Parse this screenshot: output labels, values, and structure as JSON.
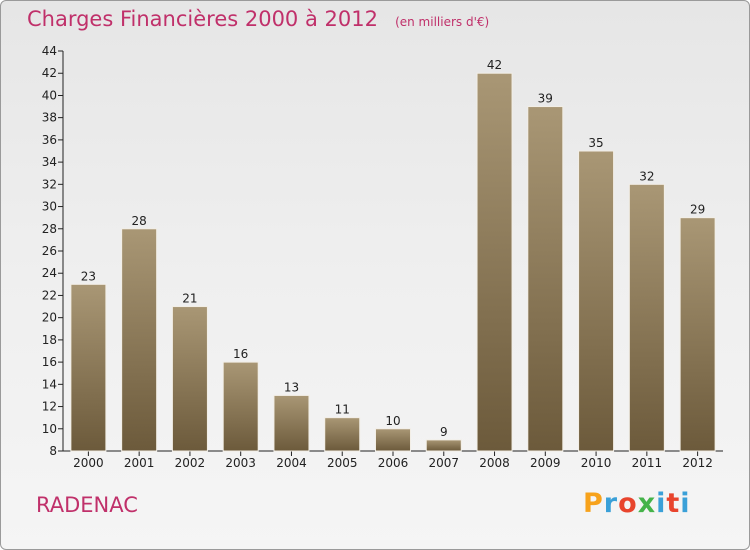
{
  "title": "Charges Financières 2000 à 2012",
  "subtitle": "(en milliers d'€)",
  "commune": "RADENAC",
  "logo": {
    "letters": [
      "P",
      "r",
      "o",
      "x",
      "i",
      "t",
      "i"
    ],
    "colors": [
      "#f7a21b",
      "#3aa0d8",
      "#e8442d",
      "#45b34a",
      "#3aa0d8",
      "#e8442d",
      "#3aa0d8"
    ]
  },
  "colors": {
    "title": "#c0306a",
    "bar_top": "#a99775",
    "bar_bottom": "#6c5a3b",
    "axis": "#222222",
    "background": "#ececec"
  },
  "chart_data": {
    "type": "bar",
    "categories": [
      "2000",
      "2001",
      "2002",
      "2003",
      "2004",
      "2005",
      "2006",
      "2007",
      "2008",
      "2009",
      "2010",
      "2011",
      "2012"
    ],
    "values": [
      23,
      28,
      21,
      16,
      13,
      11,
      10,
      9,
      42,
      39,
      35,
      32,
      29
    ],
    "ylim": [
      8,
      44
    ],
    "yticks": [
      8,
      10,
      12,
      14,
      16,
      18,
      20,
      22,
      24,
      26,
      28,
      30,
      32,
      34,
      36,
      38,
      40,
      42,
      44
    ],
    "grid": false,
    "legend": "none"
  }
}
